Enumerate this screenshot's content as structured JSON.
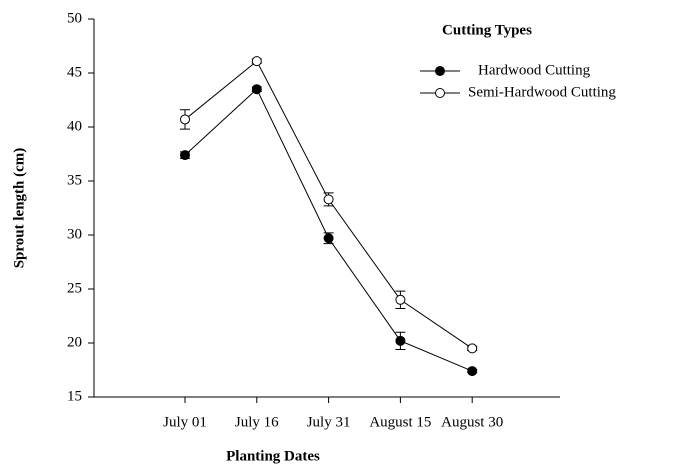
{
  "chart_data": {
    "type": "line",
    "x_label": "Planting Dates",
    "y_label": "Sprout length (cm)",
    "legend_title": "Cutting Types",
    "legend_position": "upper right",
    "categories": [
      "July 01",
      "July 16",
      "July 31",
      "August 15",
      "August 30"
    ],
    "series": [
      {
        "name": "Hardwood Cutting",
        "color": "#000000",
        "marker": "filled-circle",
        "values": [
          37.4,
          43.5,
          29.7,
          20.2,
          17.4
        ],
        "errors": [
          0.3,
          0.2,
          0.5,
          0.8,
          0.15
        ]
      },
      {
        "name": "Semi-Hardwood Cutting",
        "color": "#000000",
        "marker": "open-circle",
        "values": [
          40.7,
          46.1,
          33.3,
          24.0,
          19.5
        ],
        "errors": [
          0.9,
          0.2,
          0.6,
          0.8,
          0.2
        ]
      }
    ],
    "ylim": [
      15,
      50
    ],
    "yticks": [
      15,
      20,
      25,
      30,
      35,
      40,
      45,
      50
    ],
    "grid": false
  }
}
